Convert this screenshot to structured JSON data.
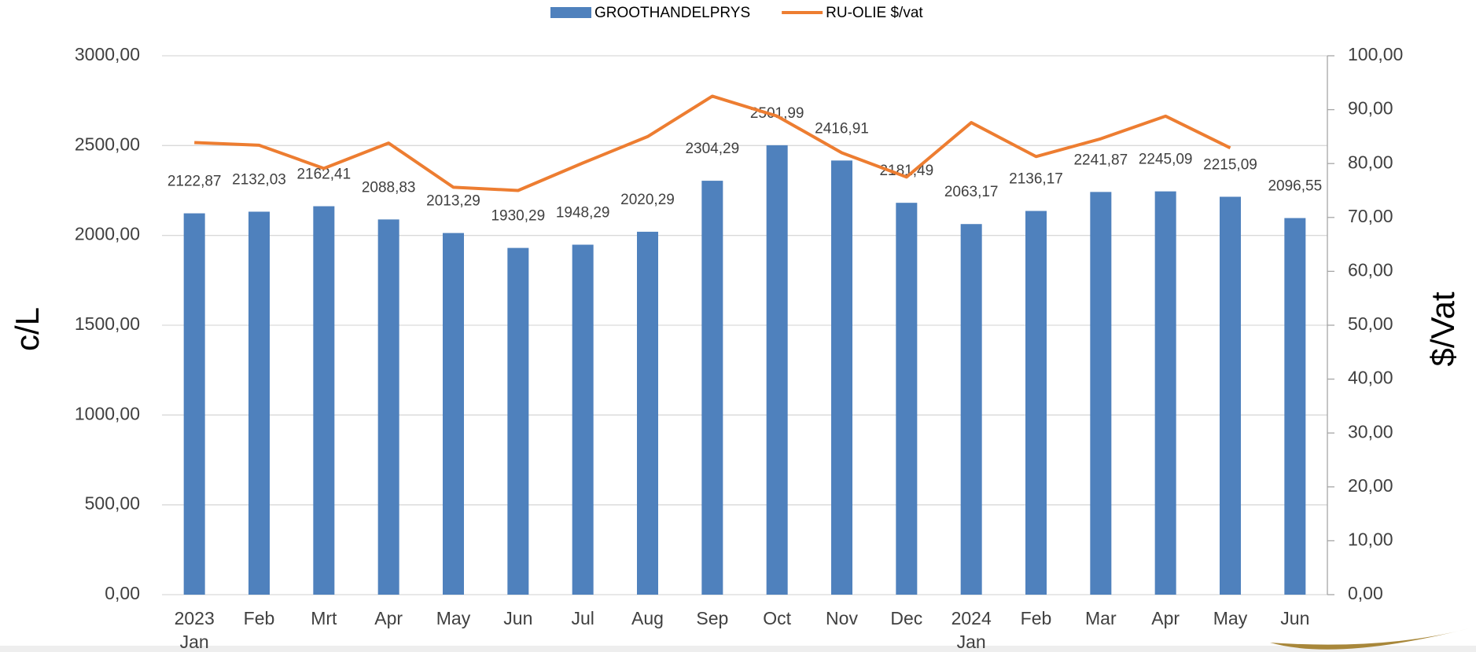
{
  "chart_data": {
    "type": "bar-line",
    "y_label": "c/L",
    "y2_label": "$/Vat",
    "categories": [
      "2023 Jan",
      "Feb",
      "Mrt",
      "Apr",
      "May",
      "Jun",
      "Jul",
      "Aug",
      "Sep",
      "Oct",
      "Nov",
      "Dec",
      "2024 Jan",
      "Feb",
      "Mar",
      "Apr",
      "May",
      "Jun"
    ],
    "series": [
      {
        "name": "GROOTHANDELPRYS",
        "type": "bar",
        "color": "#4f81bd",
        "values": [
          2122.87,
          2132.03,
          2162.41,
          2088.83,
          2013.29,
          1930.29,
          1948.29,
          2020.29,
          2304.29,
          2501.99,
          2416.91,
          2181.49,
          2063.17,
          2136.17,
          2241.87,
          2245.09,
          2215.09,
          2096.55
        ],
        "value_labels": [
          "2122,87",
          "2132,03",
          "2162,41",
          "2088,83",
          "2013,29",
          "1930,29",
          "1948,29",
          "2020,29",
          "2304,29",
          "2501,99",
          "2416,91",
          "2181,49",
          "2063,17",
          "2136,17",
          "2241,87",
          "2245,09",
          "2215,09",
          "2096,55"
        ]
      },
      {
        "name": "RU-OLIE $/vat",
        "type": "line",
        "axis": "y2",
        "color": "#ed7d31",
        "values": [
          83.9,
          83.4,
          79.1,
          83.8,
          75.6,
          75.0,
          80.1,
          85.0,
          92.5,
          88.8,
          82.0,
          77.5,
          87.6,
          81.3,
          84.6,
          88.8,
          82.9,
          null
        ]
      }
    ],
    "ylim": [
      0,
      3000
    ],
    "yticks": [
      {
        "value": 0,
        "label": "0,00"
      },
      {
        "value": 500,
        "label": "500,00"
      },
      {
        "value": 1000,
        "label": "1000,00"
      },
      {
        "value": 1500,
        "label": "1500,00"
      },
      {
        "value": 2000,
        "label": "2000,00"
      },
      {
        "value": 2500,
        "label": "2500,00"
      },
      {
        "value": 3000,
        "label": "3000,00"
      }
    ],
    "y2lim": [
      0,
      100
    ],
    "y2ticks": [
      {
        "value": 0,
        "label": "0,00"
      },
      {
        "value": 10,
        "label": "10,00"
      },
      {
        "value": 20,
        "label": "20,00"
      },
      {
        "value": 30,
        "label": "30,00"
      },
      {
        "value": 40,
        "label": "40,00"
      },
      {
        "value": 50,
        "label": "50,00"
      },
      {
        "value": 60,
        "label": "60,00"
      },
      {
        "value": 70,
        "label": "70,00"
      },
      {
        "value": 80,
        "label": "80,00"
      },
      {
        "value": 90,
        "label": "90,00"
      },
      {
        "value": 100,
        "label": "100,00"
      }
    ],
    "grid": true,
    "legend": "top"
  }
}
